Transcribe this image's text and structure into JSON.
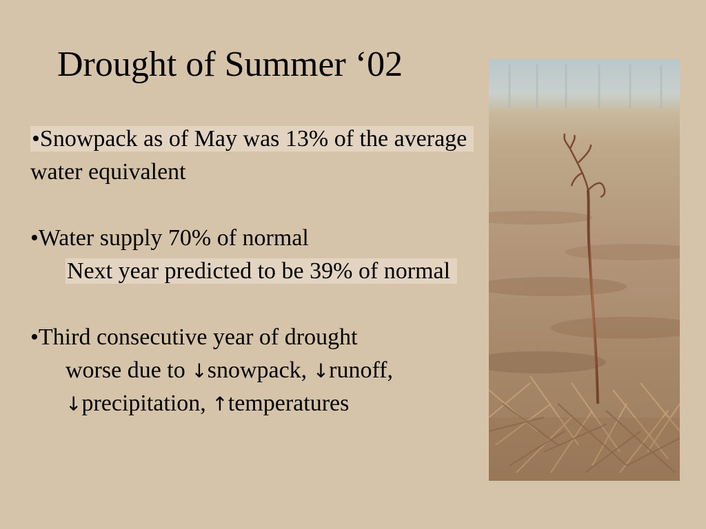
{
  "slide": {
    "title": "Drought of Summer ‘02",
    "bullets": [
      {
        "lines": [
          "•Snowpack as of May was 13% of the average",
          "water equivalent"
        ]
      },
      {
        "lines": [
          "•Water supply 70% of normal",
          "Next year predicted  to be 39% of normal"
        ]
      },
      {
        "lines": [
          "•Third consecutive year of drought"
        ],
        "sub_line_1": {
          "prefix": "worse due to ",
          "a1": "↓",
          "t1": "snowpack, ",
          "a2": "↓",
          "t2": "runoff,"
        },
        "sub_line_2": {
          "a1": "↓",
          "t1": "precipitation, ",
          "a2": "↑",
          "t2": "temperatures"
        }
      }
    ],
    "photo_icon": "drought-seedling-photo",
    "colors": {
      "background": "#d6c4aa",
      "text": "#000000"
    }
  }
}
